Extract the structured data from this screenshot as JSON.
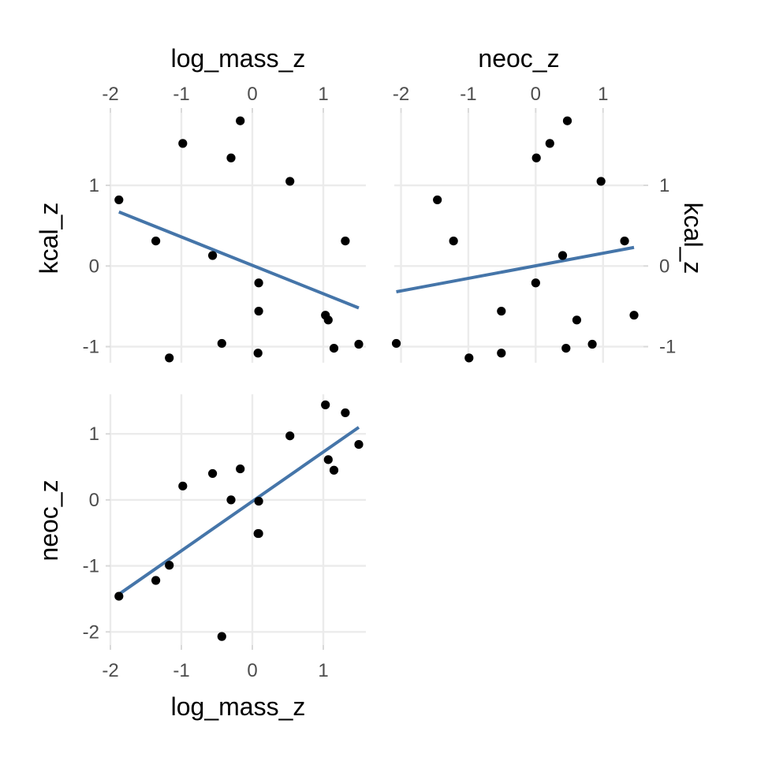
{
  "chart_data": [
    {
      "type": "scatter",
      "panel": "top-left",
      "xlabel": "log_mass_z",
      "ylabel": "kcal_z",
      "xlim": [
        -2,
        1.6
      ],
      "ylim": [
        -1.2,
        1.9
      ],
      "x_ticks": [
        "-2",
        "-1",
        "0",
        "1"
      ],
      "y_ticks": [
        "-1",
        "0",
        "1"
      ],
      "grid": true,
      "points": [
        {
          "x": -1.88,
          "y": 0.82
        },
        {
          "x": -1.36,
          "y": 0.31
        },
        {
          "x": -1.17,
          "y": -1.14
        },
        {
          "x": -0.98,
          "y": 1.52
        },
        {
          "x": -0.56,
          "y": 0.13
        },
        {
          "x": -0.43,
          "y": -0.96
        },
        {
          "x": -0.3,
          "y": 1.34
        },
        {
          "x": -0.17,
          "y": 1.8
        },
        {
          "x": 0.08,
          "y": -1.08
        },
        {
          "x": 0.09,
          "y": -0.21
        },
        {
          "x": 0.09,
          "y": -0.56
        },
        {
          "x": 0.53,
          "y": 1.05
        },
        {
          "x": 1.03,
          "y": -0.61
        },
        {
          "x": 1.07,
          "y": -0.67
        },
        {
          "x": 1.15,
          "y": -1.02
        },
        {
          "x": 1.31,
          "y": 0.31
        },
        {
          "x": 1.5,
          "y": -0.97
        }
      ],
      "fit": {
        "x": [
          -1.88,
          1.5
        ],
        "y": [
          0.67,
          -0.52
        ]
      }
    },
    {
      "type": "scatter",
      "panel": "top-right",
      "xlabel": "neoc_z",
      "ylabel": "kcal_z",
      "xlim": [
        -2.1,
        1.6
      ],
      "ylim": [
        -1.2,
        1.9
      ],
      "x_ticks": [
        "-2",
        "-1",
        "0",
        "1"
      ],
      "y_ticks": [
        "-1",
        "0",
        "1"
      ],
      "grid": true,
      "points": [
        {
          "x": -2.07,
          "y": -0.96
        },
        {
          "x": -1.46,
          "y": 0.82
        },
        {
          "x": -1.22,
          "y": 0.31
        },
        {
          "x": -0.99,
          "y": -1.14
        },
        {
          "x": -0.51,
          "y": -0.56
        },
        {
          "x": -0.51,
          "y": -1.08
        },
        {
          "x": 0.0,
          "y": -0.21
        },
        {
          "x": 0.01,
          "y": 1.34
        },
        {
          "x": 0.21,
          "y": 1.52
        },
        {
          "x": 0.4,
          "y": 0.13
        },
        {
          "x": 0.45,
          "y": -1.02
        },
        {
          "x": 0.47,
          "y": 1.8
        },
        {
          "x": 0.61,
          "y": -0.67
        },
        {
          "x": 0.84,
          "y": -0.97
        },
        {
          "x": 0.97,
          "y": 1.05
        },
        {
          "x": 1.32,
          "y": 0.31
        },
        {
          "x": 1.46,
          "y": -0.61
        }
      ],
      "fit": {
        "x": [
          -2.07,
          1.46
        ],
        "y": [
          -0.32,
          0.23
        ]
      }
    },
    {
      "type": "scatter",
      "panel": "bottom-left",
      "xlabel": "log_mass_z",
      "ylabel": "neoc_z",
      "xlim": [
        -2,
        1.6
      ],
      "ylim": [
        -2.2,
        1.6
      ],
      "x_ticks": [
        "-2",
        "-1",
        "0",
        "1"
      ],
      "y_ticks": [
        "-2",
        "-1",
        "0",
        "1"
      ],
      "grid": true,
      "points": [
        {
          "x": -1.88,
          "y": -1.46
        },
        {
          "x": -1.36,
          "y": -1.22
        },
        {
          "x": -1.17,
          "y": -0.99
        },
        {
          "x": -0.98,
          "y": 0.21
        },
        {
          "x": -0.56,
          "y": 0.4
        },
        {
          "x": -0.43,
          "y": -2.07
        },
        {
          "x": -0.3,
          "y": 0.0
        },
        {
          "x": -0.17,
          "y": 0.47
        },
        {
          "x": 0.08,
          "y": -0.51
        },
        {
          "x": 0.09,
          "y": -0.51
        },
        {
          "x": 0.09,
          "y": -0.02
        },
        {
          "x": 0.53,
          "y": 0.97
        },
        {
          "x": 1.03,
          "y": 1.44
        },
        {
          "x": 1.07,
          "y": 0.61
        },
        {
          "x": 1.15,
          "y": 0.45
        },
        {
          "x": 1.31,
          "y": 1.32
        },
        {
          "x": 1.5,
          "y": 0.84
        }
      ],
      "fit": {
        "x": [
          -1.88,
          1.5
        ],
        "y": [
          -1.43,
          1.1
        ]
      }
    }
  ]
}
